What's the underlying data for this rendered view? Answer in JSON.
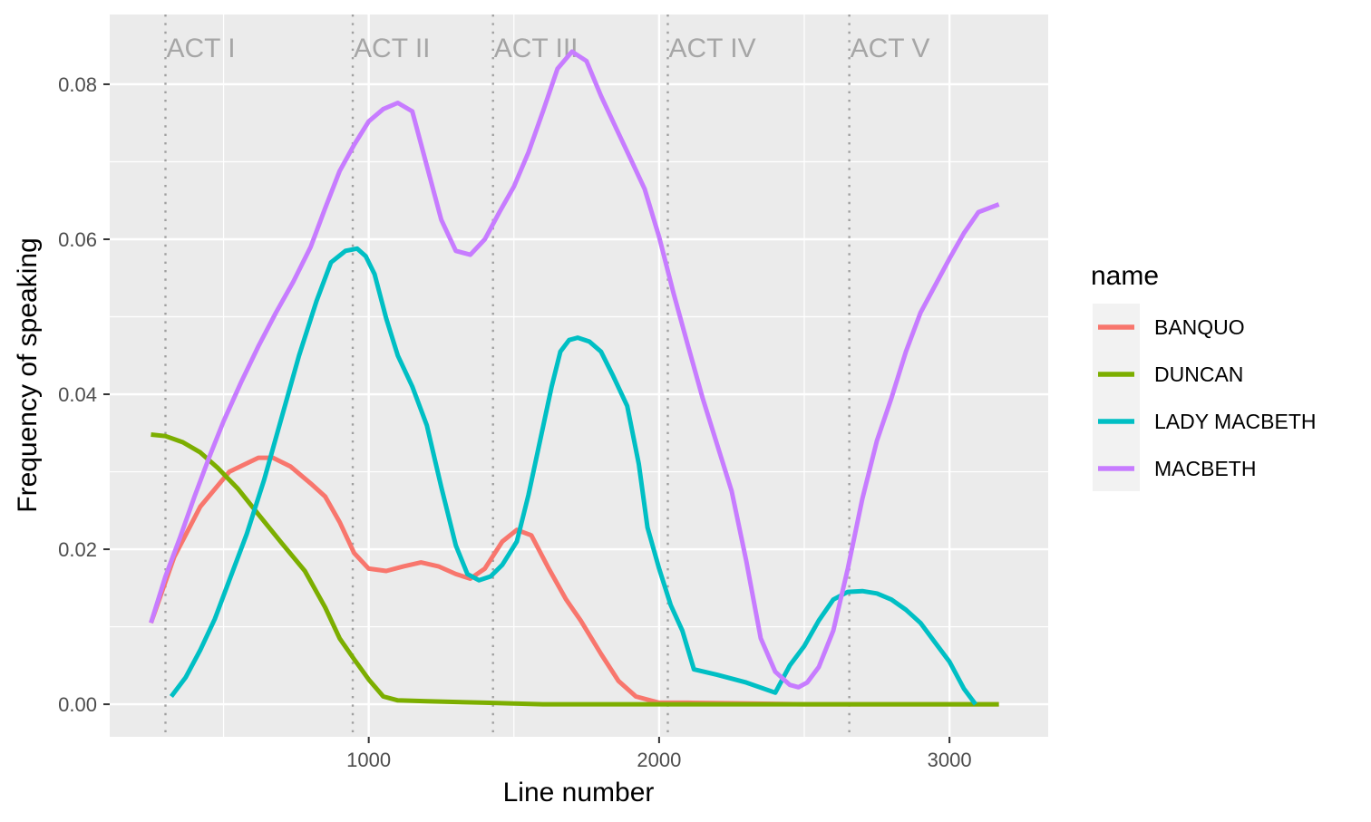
{
  "chart_data": {
    "type": "line",
    "xlabel": "Line number",
    "ylabel": "Frequency of speaking",
    "xlim": [
      108,
      3340
    ],
    "ylim": [
      -0.0042,
      0.089
    ],
    "x_ticks": [
      1000,
      2000,
      3000
    ],
    "x_tick_labels": [
      "1000",
      "2000",
      "3000"
    ],
    "y_ticks": [
      0.0,
      0.02,
      0.04,
      0.06,
      0.08
    ],
    "y_tick_labels": [
      "0.00",
      "0.02",
      "0.04",
      "0.06",
      "0.08"
    ],
    "grid": true,
    "legend": {
      "title": "name",
      "position": "right"
    },
    "annotations": [
      {
        "label": "ACT I",
        "x": 300
      },
      {
        "label": "ACT II",
        "x": 945
      },
      {
        "label": "ACT III",
        "x": 1428
      },
      {
        "label": "ACT IV",
        "x": 2030
      },
      {
        "label": "ACT V",
        "x": 2655
      }
    ],
    "series": [
      {
        "name": "BANQUO",
        "color": "#F8766D",
        "x": [
          250,
          330,
          420,
          520,
          620,
          670,
          730,
          800,
          850,
          900,
          950,
          1000,
          1060,
          1120,
          1180,
          1240,
          1300,
          1350,
          1400,
          1460,
          1510,
          1560,
          1620,
          1680,
          1730,
          1800,
          1860,
          1920,
          2000,
          2100,
          2300,
          2500,
          2800,
          3170
        ],
        "y": [
          0.0105,
          0.019,
          0.0255,
          0.03,
          0.0318,
          0.0318,
          0.0307,
          0.0285,
          0.0268,
          0.0235,
          0.0195,
          0.0175,
          0.0172,
          0.0178,
          0.0183,
          0.0178,
          0.0168,
          0.0162,
          0.0175,
          0.021,
          0.0225,
          0.0218,
          0.0175,
          0.0135,
          0.0108,
          0.0065,
          0.003,
          0.001,
          0.0002,
          0.0002,
          0.0001,
          0.0,
          0.0,
          0.0
        ]
      },
      {
        "name": "DUNCAN",
        "color": "#7CAE00",
        "x": [
          250,
          300,
          360,
          420,
          480,
          550,
          620,
          700,
          780,
          850,
          900,
          950,
          1000,
          1050,
          1100,
          1200,
          1400,
          1600,
          2000,
          2500,
          3000,
          3170
        ],
        "y": [
          0.0348,
          0.0346,
          0.0338,
          0.0325,
          0.0305,
          0.0278,
          0.0245,
          0.0208,
          0.0172,
          0.0125,
          0.0085,
          0.0058,
          0.0032,
          0.001,
          0.0005,
          0.0004,
          0.0002,
          0.0,
          0.0,
          0.0,
          0.0,
          0.0
        ]
      },
      {
        "name": "LADY MACBETH",
        "color": "#00BFC4",
        "x": [
          320,
          370,
          420,
          470,
          520,
          580,
          640,
          700,
          760,
          820,
          870,
          920,
          960,
          990,
          1020,
          1060,
          1100,
          1150,
          1200,
          1250,
          1300,
          1340,
          1380,
          1420,
          1460,
          1510,
          1550,
          1590,
          1630,
          1660,
          1690,
          1720,
          1760,
          1800,
          1840,
          1890,
          1930,
          1960,
          2000,
          2040,
          2080,
          2120,
          2200,
          2300,
          2400,
          2450,
          2500,
          2550,
          2600,
          2650,
          2700,
          2750,
          2800,
          2850,
          2900,
          2950,
          3000,
          3050,
          3090
        ],
        "y": [
          0.001,
          0.0035,
          0.007,
          0.011,
          0.016,
          0.022,
          0.029,
          0.037,
          0.045,
          0.052,
          0.057,
          0.0585,
          0.0588,
          0.0578,
          0.0555,
          0.0498,
          0.045,
          0.041,
          0.036,
          0.028,
          0.0205,
          0.0168,
          0.016,
          0.0165,
          0.018,
          0.021,
          0.027,
          0.034,
          0.041,
          0.0455,
          0.047,
          0.0473,
          0.0468,
          0.0455,
          0.0425,
          0.0385,
          0.031,
          0.0228,
          0.0175,
          0.0128,
          0.0095,
          0.0045,
          0.0038,
          0.0028,
          0.0015,
          0.005,
          0.0075,
          0.0108,
          0.0135,
          0.0145,
          0.0146,
          0.0143,
          0.0135,
          0.0122,
          0.0105,
          0.008,
          0.0055,
          0.002,
          0.0
        ]
      },
      {
        "name": "MACBETH",
        "color": "#C77CFF",
        "x": [
          250,
          300,
          350,
          400,
          450,
          500,
          560,
          620,
          680,
          740,
          800,
          850,
          900,
          950,
          1000,
          1050,
          1100,
          1150,
          1200,
          1250,
          1300,
          1350,
          1400,
          1450,
          1500,
          1550,
          1600,
          1650,
          1700,
          1750,
          1800,
          1850,
          1900,
          1950,
          2000,
          2050,
          2100,
          2150,
          2200,
          2250,
          2300,
          2350,
          2400,
          2450,
          2480,
          2510,
          2550,
          2600,
          2650,
          2700,
          2750,
          2800,
          2850,
          2900,
          2950,
          3000,
          3050,
          3100,
          3170
        ],
        "y": [
          0.0105,
          0.0165,
          0.0215,
          0.0268,
          0.0318,
          0.0365,
          0.0415,
          0.0462,
          0.0505,
          0.0545,
          0.059,
          0.064,
          0.0688,
          0.0722,
          0.0752,
          0.0768,
          0.0776,
          0.0765,
          0.0695,
          0.0625,
          0.0585,
          0.058,
          0.06,
          0.0635,
          0.0668,
          0.0712,
          0.0765,
          0.082,
          0.0842,
          0.083,
          0.0785,
          0.0745,
          0.0705,
          0.0665,
          0.0603,
          0.053,
          0.0462,
          0.0395,
          0.0335,
          0.0275,
          0.0185,
          0.0085,
          0.0042,
          0.0025,
          0.0022,
          0.0028,
          0.0048,
          0.0095,
          0.0175,
          0.0265,
          0.034,
          0.0395,
          0.0455,
          0.0505,
          0.054,
          0.0575,
          0.0608,
          0.0635,
          0.0645
        ]
      }
    ]
  }
}
